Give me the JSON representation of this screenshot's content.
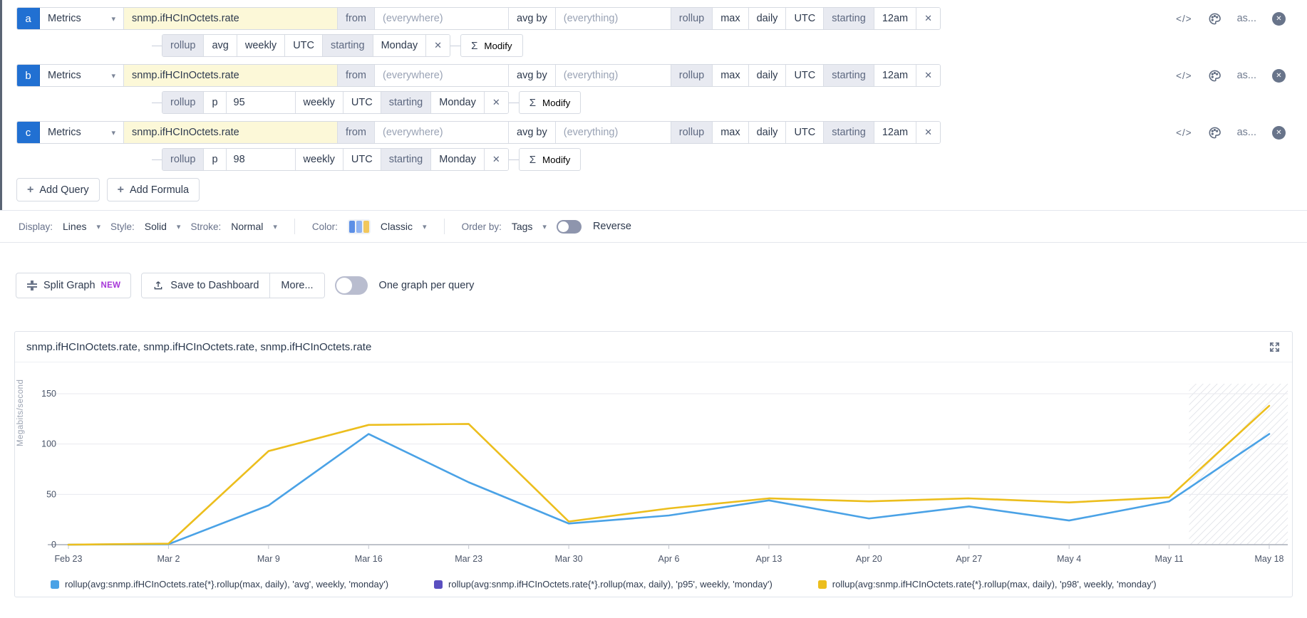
{
  "icons": {
    "sigma": "Σ",
    "close_x": "✕",
    "plus": "+",
    "caret": "▾",
    "code": "</>",
    "circle_x": "✕"
  },
  "labels": {
    "source": "Metrics",
    "metric": "snmp.ifHCInOctets.rate",
    "from": "from",
    "everywhere": "(everywhere)",
    "avg_by": "avg by",
    "everything": "(everything)",
    "rollup": "rollup",
    "max": "max",
    "daily": "daily",
    "utc": "UTC",
    "starting": "starting",
    "midnight": "12am",
    "weekly": "weekly",
    "monday": "Monday",
    "avg": "avg",
    "p": "p",
    "modify": "Modify",
    "as": "as..."
  },
  "queries": [
    {
      "letter": "a",
      "rollup_type": "avg"
    },
    {
      "letter": "b",
      "rollup_type": "p",
      "p_value": "95"
    },
    {
      "letter": "c",
      "rollup_type": "p",
      "p_value": "98"
    }
  ],
  "actions": {
    "add_query": "Add Query",
    "add_formula": "Add Formula"
  },
  "display_options": {
    "display_label": "Display:",
    "display_value": "Lines",
    "style_label": "Style:",
    "style_value": "Solid",
    "stroke_label": "Stroke:",
    "stroke_value": "Normal",
    "color_label": "Color:",
    "color_value": "Classic",
    "order_label": "Order by:",
    "order_value": "Tags",
    "reverse_label": "Reverse",
    "palette_colors": [
      "#5c8fe6",
      "#8fb3f2",
      "#f2c75c"
    ]
  },
  "toolbar": {
    "split_graph": "Split Graph",
    "new_badge": "NEW",
    "save": "Save to Dashboard",
    "more": "More...",
    "one_graph": "One graph per query"
  },
  "chart": {
    "title": "snmp.ifHCInOctets.rate, snmp.ifHCInOctets.rate, snmp.ifHCInOctets.rate"
  },
  "chart_data": {
    "type": "line",
    "title": "snmp.ifHCInOctets.rate, snmp.ifHCInOctets.rate, snmp.ifHCInOctets.rate",
    "xlabel": "",
    "ylabel": "Megabits/second",
    "ylim": [
      0,
      160
    ],
    "yticks": [
      0,
      50,
      100,
      150
    ],
    "grid": true,
    "legend_position": "bottom",
    "shaded_incomplete_region_from": "May 11",
    "categories": [
      "Feb 23",
      "Mar 2",
      "Mar 9",
      "Mar 16",
      "Mar 23",
      "Mar 30",
      "Apr 6",
      "Apr 13",
      "Apr 20",
      "Apr 27",
      "May 4",
      "May 11",
      "May 18"
    ],
    "series": [
      {
        "name": "rollup(avg:snmp.ifHCInOctets.rate{*}.rollup(max, daily), 'avg', weekly, 'monday')",
        "color": "#4aa2e6",
        "visible": true,
        "values": [
          0,
          0.5,
          39,
          110,
          62,
          21,
          29,
          44,
          26,
          38,
          24,
          43,
          110
        ]
      },
      {
        "name": "rollup(avg:snmp.ifHCInOctets.rate{*}.rollup(max, daily), 'p95', weekly, 'monday')",
        "color": "#5a4fc0",
        "visible": false,
        "values": []
      },
      {
        "name": "rollup(avg:snmp.ifHCInOctets.rate{*}.rollup(max, daily), 'p98', weekly, 'monday')",
        "color": "#ecbe1d",
        "visible": true,
        "values": [
          0,
          1,
          93,
          119,
          120,
          23,
          36,
          46,
          43,
          46,
          42,
          47,
          138
        ]
      }
    ]
  }
}
